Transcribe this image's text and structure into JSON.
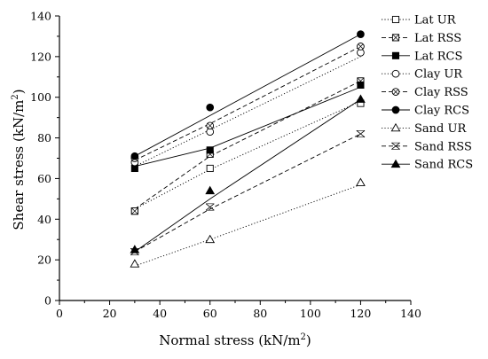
{
  "chart_data": {
    "type": "scatter",
    "xlabel": "Normal stress (kN/m",
    "xlabel_sup": "2",
    "xlabel_tail": ")",
    "ylabel": "Shear stress (kN/m",
    "ylabel_sup": "2",
    "ylabel_tail": ")",
    "xlim": [
      0,
      140
    ],
    "ylim": [
      0,
      140
    ],
    "xticks": [
      0,
      20,
      40,
      60,
      80,
      100,
      120,
      140
    ],
    "yticks": [
      0,
      20,
      40,
      60,
      80,
      100,
      120,
      140
    ],
    "x": [
      30,
      60,
      120
    ],
    "legend_position": "right",
    "series": [
      {
        "name": "Lat UR",
        "values": [
          44,
          65,
          97
        ],
        "marker": "square-open",
        "line": "dotted",
        "trend": [
          45,
          64.5,
          98
        ]
      },
      {
        "name": "Lat RSS",
        "values": [
          44,
          72,
          108
        ],
        "marker": "square-cross",
        "line": "dashed",
        "trend": [
          45,
          71,
          108
        ]
      },
      {
        "name": "Lat RCS",
        "values": [
          65,
          74,
          106
        ],
        "marker": "square-filled",
        "line": "solid",
        "trend": [
          66,
          75,
          105
        ]
      },
      {
        "name": "Clay UR",
        "values": [
          68,
          83,
          122
        ],
        "marker": "circle-open",
        "line": "dotted",
        "trend": [
          66,
          84,
          120
        ]
      },
      {
        "name": "Clay RSS",
        "values": [
          70,
          86,
          125
        ],
        "marker": "circle-cross",
        "line": "dashed",
        "trend": [
          69,
          87,
          125
        ]
      },
      {
        "name": "Clay RCS",
        "values": [
          71,
          95,
          131
        ],
        "marker": "circle-filled",
        "line": "solid",
        "trend": [
          71,
          91,
          131
        ]
      },
      {
        "name": "Sand UR",
        "values": [
          18,
          30,
          58
        ],
        "marker": "triangle-open",
        "line": "dotted",
        "trend": [
          17,
          30,
          57
        ]
      },
      {
        "name": "Sand RSS",
        "values": [
          24,
          46,
          82
        ],
        "marker": "triangle-cross",
        "line": "dashed",
        "trend": [
          24,
          45,
          82
        ]
      },
      {
        "name": "Sand RCS",
        "values": [
          25,
          54,
          99
        ],
        "marker": "triangle-filled",
        "line": "solid",
        "trend": [
          24,
          50,
          99
        ]
      }
    ]
  }
}
